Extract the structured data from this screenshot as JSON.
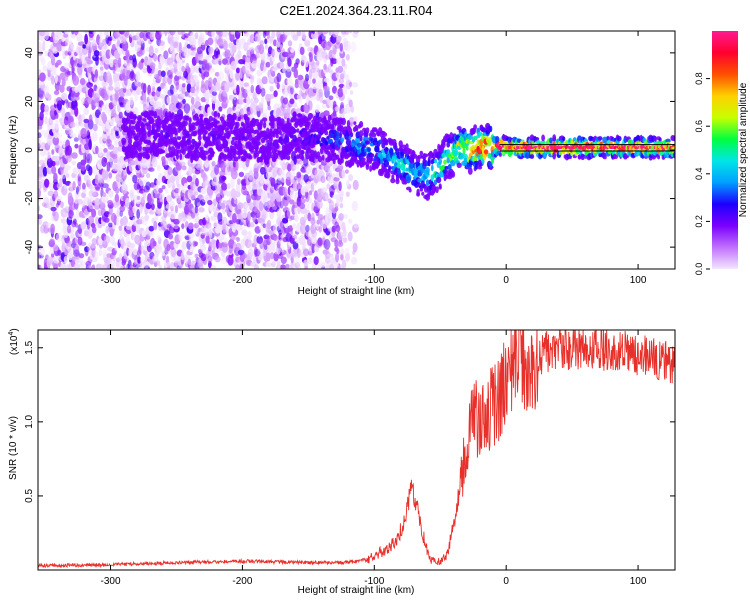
{
  "title": "C2E1.2024.364.23.11.R04",
  "chart_data": [
    {
      "type": "heatmap",
      "xlabel": "Height of straight line (km)",
      "ylabel": "Frequency (Hz)",
      "xlim": [
        -355,
        128
      ],
      "ylim": [
        -49,
        49
      ],
      "x_ticks": [
        -300,
        -200,
        -100,
        0,
        100
      ],
      "x_tick_labels": [
        "-300",
        "-200",
        "-100",
        "0",
        "100"
      ],
      "y_ticks": [
        -40,
        -20,
        0,
        20,
        40
      ],
      "y_tick_labels": [
        "-40",
        "-20",
        "0",
        "20",
        "40"
      ],
      "colorbar": {
        "label": "Normalized spectral amplitude",
        "range": [
          0,
          1
        ],
        "ticks": [
          0.0,
          0.2,
          0.4,
          0.6,
          0.8
        ],
        "tick_labels": [
          "0.0",
          "0.2",
          "0.4",
          "0.6",
          "0.8"
        ],
        "colors": [
          "#f4e6ff",
          "#c070ff",
          "#7a00ff",
          "#1c00ff",
          "#00a0ff",
          "#00e6e6",
          "#00ff40",
          "#c8ff00",
          "#ffd000",
          "#ff5000",
          "#ff0030",
          "#ff1a90"
        ]
      },
      "ridge": {
        "x": [
          -290,
          -260,
          -240,
          -220,
          -200,
          -180,
          -160,
          -140,
          -120,
          -100,
          -90,
          -80,
          -70,
          -60,
          -50,
          -45,
          -40,
          -35,
          -30,
          -20,
          -10,
          -5,
          0,
          20,
          60,
          100,
          128
        ],
        "freq": [
          5,
          7,
          5,
          6,
          5,
          4,
          6,
          5,
          3,
          1,
          -2,
          -6,
          -9,
          -11,
          -7,
          -3,
          -2,
          1,
          0,
          1,
          1,
          2,
          1,
          1,
          1,
          1,
          1
        ],
        "amplitude": [
          0.15,
          0.2,
          0.2,
          0.2,
          0.2,
          0.2,
          0.22,
          0.28,
          0.35,
          0.4,
          0.42,
          0.45,
          0.48,
          0.5,
          0.55,
          0.6,
          0.65,
          0.75,
          0.8,
          0.9,
          0.95,
          1.0,
          1.0,
          1.0,
          1.0,
          1.0,
          0.95
        ]
      },
      "noise_x_extent": [
        -355,
        -125
      ]
    },
    {
      "type": "line",
      "xlabel": "Height of straight line (km)",
      "ylabel": "SNR (10 * v/v)",
      "scale_label": "(x10",
      "scale_exp": "4",
      "scale_close": ")",
      "xlim": [
        -355,
        128
      ],
      "ylim": [
        0,
        1.62
      ],
      "x_ticks": [
        -300,
        -200,
        -100,
        0,
        100
      ],
      "x_tick_labels": [
        "-300",
        "-200",
        "-100",
        "0",
        "100"
      ],
      "y_ticks": [
        0.5,
        1.0,
        1.5
      ],
      "y_tick_labels": [
        "0.5",
        "1.0",
        "1.5"
      ],
      "color": "#e8302a",
      "series": [
        {
          "x": [
            -355,
            -300,
            -250,
            -200,
            -150,
            -120,
            -105,
            -95,
            -85,
            -78,
            -72,
            -68,
            -62,
            -58,
            -50,
            -45,
            -40,
            -35,
            -30,
            -25,
            -20,
            -15,
            -10,
            -5,
            0,
            5,
            10,
            15,
            20,
            30,
            40,
            60,
            80,
            100,
            128
          ],
          "y": [
            0.03,
            0.035,
            0.05,
            0.06,
            0.05,
            0.05,
            0.07,
            0.12,
            0.18,
            0.3,
            0.55,
            0.45,
            0.2,
            0.08,
            0.05,
            0.1,
            0.3,
            0.55,
            0.9,
            1.05,
            1.0,
            1.05,
            1.1,
            1.15,
            1.3,
            1.4,
            1.5,
            1.35,
            1.4,
            1.48,
            1.5,
            1.5,
            1.48,
            1.45,
            1.4
          ]
        }
      ]
    }
  ]
}
